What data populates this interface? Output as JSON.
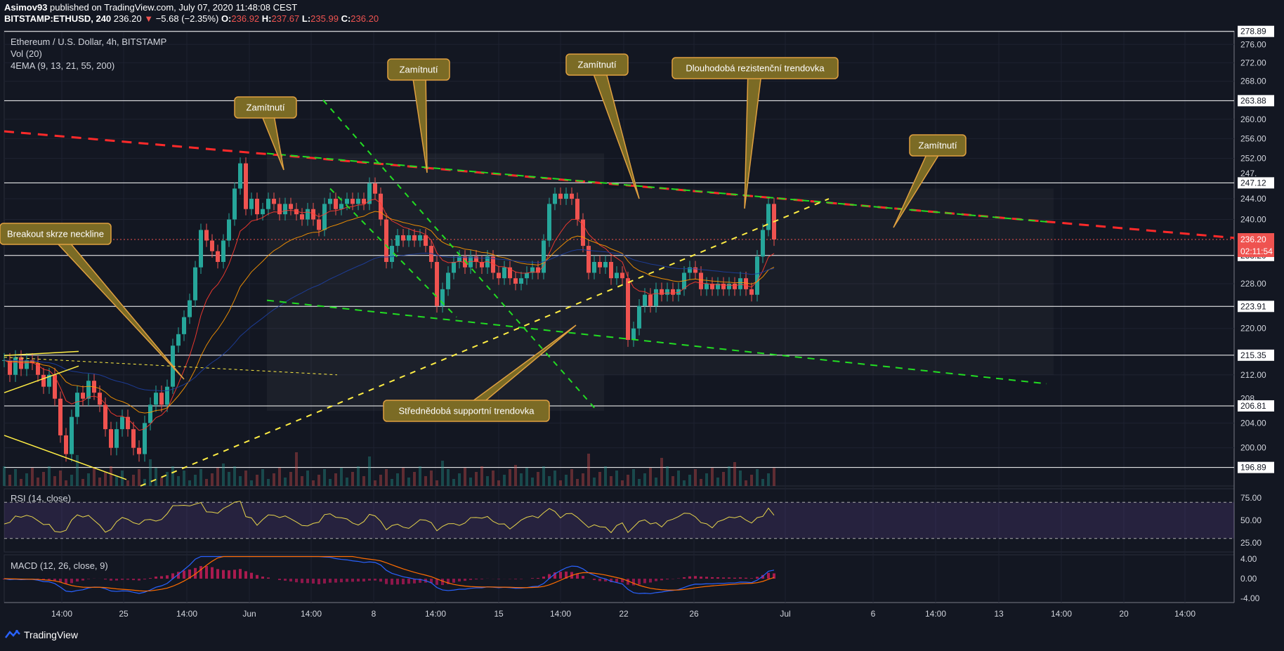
{
  "header": {
    "author": "Asimov93",
    "published_text": "published on TradingView.com, July 07, 2020 11:48:08 CEST",
    "symbol": "BITSTAMP:ETHUSD, 240",
    "last": "236.20",
    "arrow": "▼",
    "change": "−5.68 (−2.35%)",
    "o_label": "O:",
    "o_val": "236.92",
    "h_label": "H:",
    "h_val": "237.67",
    "l_label": "L:",
    "l_val": "235.99",
    "c_label": "C:",
    "c_val": "236.20"
  },
  "legend": {
    "title": "Ethereum / U.S. Dollar, 4h, BITSTAMP",
    "vol": "Vol (20)",
    "ema": "4EMA (9, 13, 21, 55, 200)",
    "rsi": "RSI (14, close)",
    "macd": "MACD (12, 26, close, 9)"
  },
  "footer": {
    "brand": "TradingView"
  },
  "colors": {
    "bg": "#131722",
    "grid": "#1e2230",
    "up": "#26a69a",
    "down": "#ef5350",
    "resistance": "#ff2a2a",
    "support_green": "#22dd22",
    "support_yellow": "#ffee44",
    "callout_fill": "#7b6b25",
    "callout_border": "#e0a040",
    "rsi_line": "#e6d44c",
    "macd_line": "#2962ff",
    "signal_line": "#ff6d00",
    "price_tag": "#ef5350"
  },
  "chart_data": {
    "type": "candlestick",
    "title": "Ethereum / U.S. Dollar, 4h, BITSTAMP",
    "price_axis": {
      "ticks": [
        "276.00",
        "272.00",
        "268.00",
        "260.00",
        "256.00",
        "252.00",
        "244.00",
        "240.00",
        "228.00",
        "220.00",
        "212.00",
        "204.00",
        "200.00"
      ],
      "range": [
        194,
        279
      ],
      "scale": "log"
    },
    "horizontal_levels": [
      "278.89",
      "263.88",
      "247.12",
      "233.20",
      "223.91",
      "215.35",
      "206.81",
      "196.89"
    ],
    "last_price": "236.20",
    "countdown": "02:11:54",
    "partial_labels": [
      "247.",
      "208."
    ],
    "time_axis": [
      "14:00",
      "25",
      "14:00",
      "Jun",
      "14:00",
      "8",
      "14:00",
      "15",
      "14:00",
      "22",
      "26",
      "Jul",
      "6",
      "14:00",
      "13",
      "14:00",
      "20",
      "14:00"
    ],
    "annotations": [
      {
        "text": "Zamítnutí"
      },
      {
        "text": "Zamítnutí"
      },
      {
        "text": "Zamítnutí"
      },
      {
        "text": "Dlouhodobá rezistenční trendovka"
      },
      {
        "text": "Zamítnutí"
      },
      {
        "text": "Breakout skrze neckline"
      },
      {
        "text": "Střednědobá supportní trendovka"
      }
    ],
    "rsi": {
      "ticks": [
        "75.00",
        "50.00",
        "25.00"
      ],
      "upper": 70,
      "lower": 30,
      "last": 62
    },
    "macd": {
      "ticks": [
        "4.00",
        "0.00",
        "-4.00"
      ]
    },
    "candles": [
      {
        "t": 0,
        "c": 214.5
      },
      {
        "t": 8,
        "c": 212
      },
      {
        "t": 16,
        "c": 215
      },
      {
        "t": 24,
        "c": 213
      },
      {
        "t": 32,
        "c": 214.5
      },
      {
        "t": 40,
        "c": 214
      },
      {
        "t": 48,
        "c": 212
      },
      {
        "t": 56,
        "c": 210
      },
      {
        "t": 64,
        "c": 212
      },
      {
        "t": 72,
        "c": 208
      },
      {
        "t": 80,
        "c": 202
      },
      {
        "t": 88,
        "c": 199
      },
      {
        "t": 96,
        "c": 205
      },
      {
        "t": 104,
        "c": 209
      },
      {
        "t": 112,
        "c": 208
      },
      {
        "t": 120,
        "c": 211
      },
      {
        "t": 128,
        "c": 209
      },
      {
        "t": 136,
        "c": 207
      },
      {
        "t": 144,
        "c": 203
      },
      {
        "t": 152,
        "c": 200
      },
      {
        "t": 160,
        "c": 203
      },
      {
        "t": 168,
        "c": 205
      },
      {
        "t": 176,
        "c": 203
      },
      {
        "t": 184,
        "c": 200
      },
      {
        "t": 192,
        "c": 199
      },
      {
        "t": 200,
        "c": 204
      },
      {
        "t": 208,
        "c": 207
      },
      {
        "t": 216,
        "c": 209
      },
      {
        "t": 224,
        "c": 207
      },
      {
        "t": 232,
        "c": 210
      },
      {
        "t": 240,
        "c": 217
      },
      {
        "t": 248,
        "c": 219
      },
      {
        "t": 256,
        "c": 222
      },
      {
        "t": 264,
        "c": 225
      },
      {
        "t": 272,
        "c": 231
      },
      {
        "t": 280,
        "c": 238
      },
      {
        "t": 288,
        "c": 236
      },
      {
        "t": 296,
        "c": 234
      },
      {
        "t": 304,
        "c": 232
      },
      {
        "t": 312,
        "c": 236
      },
      {
        "t": 320,
        "c": 240
      },
      {
        "t": 328,
        "c": 246
      },
      {
        "t": 336,
        "c": 251
      },
      {
        "t": 344,
        "c": 242
      },
      {
        "t": 352,
        "c": 244
      },
      {
        "t": 360,
        "c": 241
      },
      {
        "t": 368,
        "c": 242
      },
      {
        "t": 376,
        "c": 244
      },
      {
        "t": 384,
        "c": 243
      },
      {
        "t": 392,
        "c": 241
      },
      {
        "t": 400,
        "c": 243
      },
      {
        "t": 408,
        "c": 242
      },
      {
        "t": 416,
        "c": 241
      },
      {
        "t": 424,
        "c": 240
      },
      {
        "t": 432,
        "c": 242
      },
      {
        "t": 440,
        "c": 240
      },
      {
        "t": 448,
        "c": 238
      },
      {
        "t": 456,
        "c": 243
      },
      {
        "t": 464,
        "c": 244
      },
      {
        "t": 472,
        "c": 242
      },
      {
        "t": 480,
        "c": 243
      },
      {
        "t": 488,
        "c": 244
      },
      {
        "t": 496,
        "c": 243
      },
      {
        "t": 504,
        "c": 244
      },
      {
        "t": 512,
        "c": 243
      },
      {
        "t": 520,
        "c": 247
      },
      {
        "t": 528,
        "c": 245
      },
      {
        "t": 536,
        "c": 240
      },
      {
        "t": 544,
        "c": 232
      },
      {
        "t": 552,
        "c": 235
      },
      {
        "t": 560,
        "c": 237
      },
      {
        "t": 568,
        "c": 236
      },
      {
        "t": 576,
        "c": 237
      },
      {
        "t": 584,
        "c": 236
      },
      {
        "t": 592,
        "c": 237
      },
      {
        "t": 600,
        "c": 235
      },
      {
        "t": 608,
        "c": 232
      },
      {
        "t": 616,
        "c": 224
      },
      {
        "t": 624,
        "c": 227
      },
      {
        "t": 632,
        "c": 230
      },
      {
        "t": 640,
        "c": 232
      },
      {
        "t": 648,
        "c": 233
      },
      {
        "t": 656,
        "c": 231
      },
      {
        "t": 664,
        "c": 233
      },
      {
        "t": 672,
        "c": 232
      },
      {
        "t": 680,
        "c": 231
      },
      {
        "t": 688,
        "c": 233
      },
      {
        "t": 696,
        "c": 230
      },
      {
        "t": 704,
        "c": 229
      },
      {
        "t": 712,
        "c": 231
      },
      {
        "t": 720,
        "c": 229
      },
      {
        "t": 728,
        "c": 228
      },
      {
        "t": 736,
        "c": 229
      },
      {
        "t": 744,
        "c": 230
      },
      {
        "t": 752,
        "c": 231
      },
      {
        "t": 760,
        "c": 230
      },
      {
        "t": 768,
        "c": 236
      },
      {
        "t": 776,
        "c": 243
      },
      {
        "t": 784,
        "c": 245
      },
      {
        "t": 792,
        "c": 244
      },
      {
        "t": 800,
        "c": 245
      },
      {
        "t": 808,
        "c": 244
      },
      {
        "t": 816,
        "c": 240
      },
      {
        "t": 824,
        "c": 235
      },
      {
        "t": 832,
        "c": 230
      },
      {
        "t": 840,
        "c": 232
      },
      {
        "t": 848,
        "c": 231
      },
      {
        "t": 856,
        "c": 232
      },
      {
        "t": 864,
        "c": 229
      },
      {
        "t": 872,
        "c": 230
      },
      {
        "t": 880,
        "c": 229
      },
      {
        "t": 888,
        "c": 218
      },
      {
        "t": 896,
        "c": 220
      },
      {
        "t": 904,
        "c": 224
      },
      {
        "t": 912,
        "c": 226
      },
      {
        "t": 920,
        "c": 224
      },
      {
        "t": 928,
        "c": 227
      },
      {
        "t": 936,
        "c": 226
      },
      {
        "t": 944,
        "c": 227
      },
      {
        "t": 952,
        "c": 226
      },
      {
        "t": 960,
        "c": 227
      },
      {
        "t": 968,
        "c": 230
      },
      {
        "t": 976,
        "c": 231
      },
      {
        "t": 984,
        "c": 230
      },
      {
        "t": 992,
        "c": 227
      },
      {
        "t": 1000,
        "c": 228
      },
      {
        "t": 1008,
        "c": 227
      },
      {
        "t": 1016,
        "c": 228
      },
      {
        "t": 1024,
        "c": 227
      },
      {
        "t": 1032,
        "c": 228
      },
      {
        "t": 1040,
        "c": 227
      },
      {
        "t": 1048,
        "c": 229
      },
      {
        "t": 1056,
        "c": 227
      },
      {
        "t": 1064,
        "c": 226
      },
      {
        "t": 1072,
        "c": 233
      },
      {
        "t": 1080,
        "c": 238
      },
      {
        "t": 1088,
        "c": 243
      },
      {
        "t": 1096,
        "c": 236.2
      }
    ]
  }
}
